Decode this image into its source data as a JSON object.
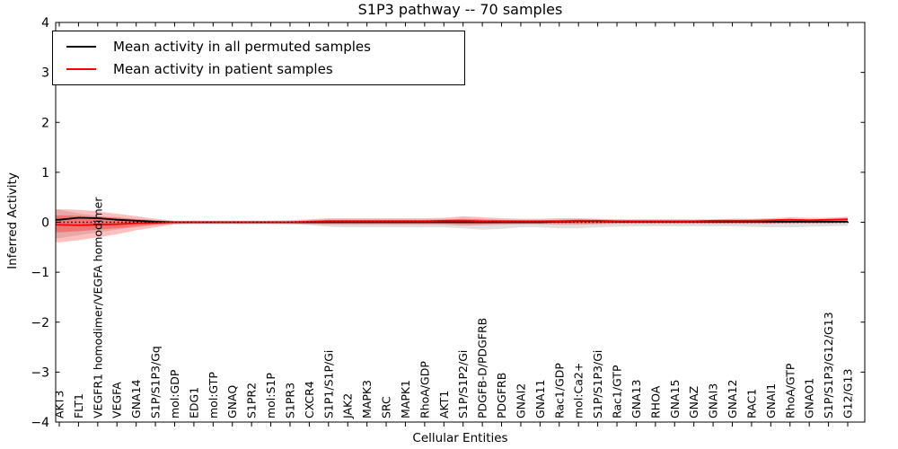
{
  "figure": {
    "title": "S1P3 pathway -- 70 samples",
    "xlabel": "Cellular Entities",
    "ylabel": "Inferred Activity",
    "legend": [
      {
        "label": "Mean activity in all permuted samples",
        "color": "#000000"
      },
      {
        "label": "Mean activity in patient samples",
        "color": "#ff0000"
      }
    ]
  },
  "chart_data": {
    "type": "line",
    "title": "S1P3 pathway -- 70 samples",
    "xlabel": "Cellular Entities",
    "ylabel": "Inferred Activity",
    "ylim": [
      -4,
      4
    ],
    "yticks": [
      -4,
      -3,
      -2,
      -1,
      0,
      1,
      2,
      3,
      4
    ],
    "ytick_labels": [
      "−4",
      "−3",
      "−2",
      "−1",
      "0",
      "1",
      "2",
      "3",
      "4"
    ],
    "grid": false,
    "legend_position": "upper left",
    "categories": [
      "AKT3",
      "FLT1",
      "VEGFR1 homodimer/VEGFA homodimer",
      "VEGFA",
      "GNA14",
      "S1P/S1P3/Gq",
      "mol:GDP",
      "EDG1",
      "mol:GTP",
      "GNAQ",
      "S1PR2",
      "mol:S1P",
      "S1PR3",
      "CXCR4",
      "S1P1/S1P/Gi",
      "JAK2",
      "MAPK3",
      "SRC",
      "MAPK1",
      "RhoA/GDP",
      "AKT1",
      "S1P/S1P2/Gi",
      "PDGFB-D/PDGFRB",
      "PDGFRB",
      "GNAI2",
      "GNA11",
      "Rac1/GDP",
      "mol:Ca2+",
      "S1P/S1P3/Gi",
      "Rac1/GTP",
      "GNA13",
      "RHOA",
      "GNA15",
      "GNAZ",
      "GNAI3",
      "GNA12",
      "RAC1",
      "GNAI1",
      "RhoA/GTP",
      "GNAO1",
      "S1P/S1P3/G12/G13",
      "G12/G13"
    ],
    "series": [
      {
        "name": "Mean activity in all permuted samples",
        "color": "#000000",
        "style": "solid",
        "values": [
          0.05,
          0.09,
          0.08,
          0.05,
          0.03,
          0.01,
          0,
          0,
          0,
          0,
          0,
          0,
          0,
          0,
          0,
          0,
          0,
          0,
          0,
          0,
          0,
          0,
          0,
          0,
          0,
          0,
          0.01,
          0.02,
          0.02,
          0.01,
          0.01,
          0.01,
          0.01,
          0.01,
          0.01,
          0.01,
          0.01,
          0.01,
          0.01,
          0.01,
          0.01,
          0.01
        ]
      },
      {
        "name": "Mean activity in patient samples",
        "color": "#ff0000",
        "style": "solid",
        "values": [
          -0.05,
          -0.06,
          -0.05,
          -0.04,
          -0.02,
          -0.01,
          0,
          0,
          0,
          0,
          0,
          0,
          0,
          0.01,
          0.02,
          0.02,
          0.02,
          0.02,
          0.02,
          0.02,
          0.03,
          0.03,
          0.02,
          0.02,
          0.02,
          0.02,
          0.02,
          0.03,
          0.03,
          0.02,
          0.02,
          0.02,
          0.02,
          0.02,
          0.03,
          0.03,
          0.03,
          0.04,
          0.05,
          0.04,
          0.05,
          0.06
        ]
      }
    ],
    "bands": [
      {
        "name": "permuted-samples-std-band",
        "color": "#999999",
        "opacity": 0.3,
        "upper": [
          0.25,
          0.18,
          0.13,
          0.1,
          0.07,
          0.04,
          0.02,
          0.02,
          0.02,
          0.02,
          0.02,
          0.02,
          0.02,
          0.04,
          0.05,
          0.05,
          0.05,
          0.05,
          0.05,
          0.05,
          0.06,
          0.06,
          0.05,
          0.04,
          0.04,
          0.04,
          0.05,
          0.06,
          0.05,
          0.05,
          0.04,
          0.04,
          0.04,
          0.04,
          0.04,
          0.04,
          0.05,
          0.05,
          0.05,
          0.05,
          0.05,
          0.05
        ],
        "lower": [
          -0.32,
          -0.26,
          -0.2,
          -0.15,
          -0.1,
          -0.06,
          -0.03,
          -0.03,
          -0.03,
          -0.03,
          -0.03,
          -0.03,
          -0.04,
          -0.06,
          -0.09,
          -0.1,
          -0.1,
          -0.1,
          -0.1,
          -0.1,
          -0.1,
          -0.12,
          -0.15,
          -0.13,
          -0.1,
          -0.1,
          -0.12,
          -0.12,
          -0.1,
          -0.09,
          -0.08,
          -0.08,
          -0.08,
          -0.08,
          -0.08,
          -0.08,
          -0.09,
          -0.1,
          -0.1,
          -0.09,
          -0.08,
          -0.07
        ]
      },
      {
        "name": "patient-samples-std-band-outer",
        "color": "#ff0000",
        "opacity": 0.25,
        "upper": [
          0.26,
          0.25,
          0.22,
          0.17,
          0.12,
          0.07,
          0.03,
          0.03,
          0.03,
          0.03,
          0.03,
          0.03,
          0.04,
          0.06,
          0.08,
          0.08,
          0.08,
          0.08,
          0.08,
          0.08,
          0.09,
          0.12,
          0.1,
          0.08,
          0.07,
          0.07,
          0.08,
          0.08,
          0.07,
          0.06,
          0.06,
          0.06,
          0.06,
          0.06,
          0.06,
          0.07,
          0.07,
          0.08,
          0.1,
          0.09,
          0.09,
          0.11
        ],
        "lower": [
          -0.4,
          -0.36,
          -0.3,
          -0.24,
          -0.16,
          -0.1,
          -0.04,
          -0.03,
          -0.03,
          -0.03,
          -0.03,
          -0.03,
          -0.03,
          -0.04,
          -0.05,
          -0.05,
          -0.05,
          -0.05,
          -0.05,
          -0.05,
          -0.05,
          -0.07,
          -0.06,
          -0.05,
          -0.04,
          -0.04,
          -0.05,
          -0.05,
          -0.04,
          -0.03,
          -0.03,
          -0.03,
          -0.03,
          -0.03,
          -0.03,
          -0.03,
          -0.03,
          -0.03,
          -0.02,
          -0.02,
          -0.02,
          -0.01
        ]
      },
      {
        "name": "patient-samples-std-band-inner",
        "color": "#ff0000",
        "opacity": 0.3,
        "upper": [
          0.14,
          0.13,
          0.11,
          0.09,
          0.06,
          0.04,
          0.02,
          0.02,
          0.02,
          0.02,
          0.02,
          0.02,
          0.02,
          0.03,
          0.05,
          0.05,
          0.05,
          0.05,
          0.05,
          0.05,
          0.05,
          0.07,
          0.06,
          0.05,
          0.04,
          0.04,
          0.05,
          0.05,
          0.04,
          0.04,
          0.04,
          0.04,
          0.04,
          0.04,
          0.04,
          0.04,
          0.04,
          0.05,
          0.06,
          0.05,
          0.06,
          0.07
        ],
        "lower": [
          -0.2,
          -0.18,
          -0.15,
          -0.12,
          -0.08,
          -0.05,
          -0.02,
          -0.02,
          -0.02,
          -0.02,
          -0.02,
          -0.02,
          -0.02,
          -0.02,
          -0.02,
          -0.02,
          -0.02,
          -0.02,
          -0.02,
          -0.02,
          -0.02,
          -0.03,
          -0.03,
          -0.02,
          -0.02,
          -0.02,
          -0.02,
          -0.02,
          -0.02,
          -0.01,
          -0.01,
          -0.01,
          -0.01,
          -0.01,
          -0.01,
          -0.01,
          -0.01,
          -0.01,
          -0.01,
          -0.01,
          -0.01,
          0.0
        ]
      }
    ],
    "zero_line": {
      "y": 0,
      "style": "dotted",
      "color": "#000000"
    }
  }
}
